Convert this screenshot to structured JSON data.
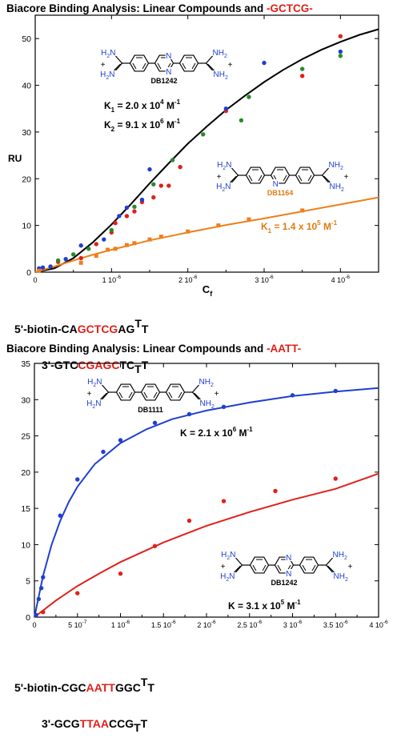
{
  "colors": {
    "red": "#e0201a",
    "blue": "#1f3fd0",
    "green": "#2a8a2a",
    "orange": "#ef7f1a",
    "black": "#000000",
    "mol_blue": "#1f3fd0",
    "mol_orange": "#e07a10"
  },
  "chart_data": [
    {
      "type": "scatter",
      "title_prefix": "Biacore Binding Analysis: Linear Compounds and ",
      "title_highlight": "-GCTCG-",
      "ylabel": "RU",
      "xlabel_main": "C",
      "xlabel_sub": "f",
      "xlim": [
        0,
        4.5e-06
      ],
      "ylim": [
        0,
        55
      ],
      "yticks": [
        0,
        10,
        20,
        30,
        40,
        50
      ],
      "xtick_values": [
        0,
        1e-06,
        2e-06,
        3e-06,
        4e-06
      ],
      "xtick_labels": [
        "0",
        "1 10",
        "2 10",
        "3 10",
        "4 10"
      ],
      "xtick_exp": "-6",
      "series": [
        {
          "color": "red",
          "points": [
            [
              3e-07,
              2.2
            ],
            [
              6e-07,
              3
            ],
            [
              8e-07,
              6
            ],
            [
              1e-06,
              8.5
            ],
            [
              1.05e-06,
              10.5
            ],
            [
              1.2e-06,
              12
            ],
            [
              1.3e-06,
              13
            ],
            [
              1.4e-06,
              15
            ],
            [
              1.55e-06,
              16
            ],
            [
              1.65e-06,
              18.5
            ],
            [
              1.75e-06,
              18.5
            ],
            [
              1.9e-06,
              22.5
            ],
            [
              2.5e-06,
              34.5
            ],
            [
              3.5e-06,
              42
            ],
            [
              4e-06,
              50.5
            ]
          ]
        },
        {
          "color": "blue",
          "points": [
            [
              5e-08,
              0.8
            ],
            [
              1e-07,
              1
            ],
            [
              2e-07,
              1.2
            ],
            [
              4e-07,
              2.8
            ],
            [
              6e-07,
              5.7
            ],
            [
              9e-07,
              7
            ],
            [
              1.1e-06,
              12
            ],
            [
              1.2e-06,
              13.8
            ],
            [
              1.4e-06,
              15.5
            ],
            [
              1.5e-06,
              22
            ],
            [
              2.5e-06,
              35
            ],
            [
              3e-06,
              44.8
            ],
            [
              4e-06,
              47.2
            ]
          ]
        },
        {
          "color": "green",
          "points": [
            [
              3e-07,
              2.5
            ],
            [
              5e-07,
              3.8
            ],
            [
              7e-07,
              5
            ],
            [
              1e-06,
              9
            ],
            [
              1.3e-06,
              14
            ],
            [
              1.55e-06,
              18.8
            ],
            [
              1.8e-06,
              24
            ],
            [
              2.2e-06,
              29.5
            ],
            [
              2.7e-06,
              32.5
            ],
            [
              2.8e-06,
              37.5
            ],
            [
              3.5e-06,
              43.5
            ],
            [
              4e-06,
              46.3
            ]
          ]
        },
        {
          "color": "orange",
          "marker": "square",
          "points": [
            [
              5e-08,
              0.3
            ],
            [
              6e-07,
              2
            ],
            [
              8e-07,
              3.5
            ],
            [
              9.5e-07,
              4.8
            ],
            [
              1.05e-06,
              5
            ],
            [
              1.2e-06,
              5.8
            ],
            [
              1.3e-06,
              6.2
            ],
            [
              1.5e-06,
              7
            ],
            [
              1.65e-06,
              7.6
            ],
            [
              2e-06,
              8.7
            ],
            [
              2.4e-06,
              10
            ],
            [
              2.8e-06,
              11.3
            ],
            [
              3.5e-06,
              13.2
            ]
          ]
        }
      ],
      "fits": [
        {
          "color": "black",
          "points": [
            [
              0,
              0
            ],
            [
              2.5e-07,
              0.8
            ],
            [
              5e-07,
              3
            ],
            [
              7.5e-07,
              6.3
            ],
            [
              1e-06,
              10.2
            ],
            [
              1.25e-06,
              14.5
            ],
            [
              1.5e-06,
              19
            ],
            [
              1.75e-06,
              23.3
            ],
            [
              2e-06,
              27.5
            ],
            [
              2.25e-06,
              31.2
            ],
            [
              2.5e-06,
              34.7
            ],
            [
              2.75e-06,
              37.8
            ],
            [
              3e-06,
              40.7
            ],
            [
              3.25e-06,
              43.3
            ],
            [
              3.5e-06,
              45.6
            ],
            [
              3.75e-06,
              47.6
            ],
            [
              4e-06,
              49.3
            ],
            [
              4.25e-06,
              50.8
            ],
            [
              4.5e-06,
              52
            ]
          ]
        },
        {
          "color": "orange",
          "points": [
            [
              0,
              0
            ],
            [
              2.5e-07,
              1.2
            ],
            [
              5e-07,
              2.5
            ],
            [
              7.5e-07,
              3.7
            ],
            [
              1e-06,
              4.8
            ],
            [
              1.5e-06,
              6.8
            ],
            [
              2e-06,
              8.5
            ],
            [
              2.5e-06,
              10.1
            ],
            [
              3e-06,
              11.5
            ],
            [
              3.5e-06,
              13
            ],
            [
              4e-06,
              14.5
            ],
            [
              4.5e-06,
              16
            ]
          ]
        }
      ],
      "annotations": [
        {
          "mol": "DB1242",
          "k": [
            {
              "pre": "K",
              "sub": "1",
              "mid": " = 2.0 x 10",
              "sup": "4",
              "post": " M",
              "post_sup": "-1"
            },
            {
              "pre": "K",
              "sub": "2",
              "mid": " = 9.1 x 10",
              "sup": "6",
              "post": " M",
              "post_sup": "-1"
            }
          ]
        },
        {
          "mol": "DB1164",
          "k": [
            {
              "pre": "K",
              "sub": "1",
              "mid": " = 1.4 x 10",
              "sup": "5",
              "post": " M",
              "post_sup": "-1"
            }
          ]
        }
      ]
    },
    {
      "type": "scatter",
      "title_prefix": "Biacore Binding Analysis: Linear Compounds and ",
      "title_highlight": "-AATT-",
      "xlim": [
        0,
        4e-06
      ],
      "ylim": [
        0,
        35
      ],
      "yticks": [
        0,
        5,
        10,
        15,
        20,
        25,
        30,
        35
      ],
      "xtick_values": [
        0,
        5e-07,
        1e-06,
        1.5e-06,
        2e-06,
        2.5e-06,
        3e-06,
        3.5e-06,
        4e-06
      ],
      "xtick_labels": [
        "0",
        "5 10",
        "1 10",
        "1.5 10",
        "2 10",
        "2.5 10",
        "3 10",
        "3.5 10",
        "4 10"
      ],
      "xtick_exps": [
        "",
        "-7",
        "-6",
        "-6",
        "-6",
        "-6",
        "-6",
        "-6",
        "-6"
      ],
      "series": [
        {
          "color": "blue",
          "points": [
            [
              2e-08,
              0.3
            ],
            [
              5e-08,
              2.5
            ],
            [
              8e-08,
              4
            ],
            [
              1e-07,
              5.5
            ],
            [
              3e-07,
              14
            ],
            [
              5e-07,
              19
            ],
            [
              8e-07,
              22.8
            ],
            [
              1e-06,
              24.4
            ],
            [
              1.4e-06,
              26.8
            ],
            [
              1.8e-06,
              28
            ],
            [
              2.2e-06,
              29
            ],
            [
              3e-06,
              30.6
            ],
            [
              3.5e-06,
              31.2
            ]
          ]
        },
        {
          "color": "red",
          "points": [
            [
              1e-07,
              0.7
            ],
            [
              5e-07,
              3.3
            ],
            [
              1e-06,
              6
            ],
            [
              1.4e-06,
              9.8
            ],
            [
              1.8e-06,
              13.3
            ],
            [
              2.2e-06,
              16
            ],
            [
              2.8e-06,
              17.4
            ],
            [
              3.5e-06,
              19.1
            ]
          ]
        }
      ],
      "fits": [
        {
          "color": "blue",
          "points": [
            [
              0,
              0
            ],
            [
              1e-07,
              5.7
            ],
            [
              2e-07,
              10
            ],
            [
              3e-07,
              13.3
            ],
            [
              4e-07,
              15.9
            ],
            [
              5e-07,
              18
            ],
            [
              7e-07,
              21.1
            ],
            [
              1e-06,
              24
            ],
            [
              1.3e-06,
              25.9
            ],
            [
              1.6e-06,
              27.3
            ],
            [
              2e-06,
              28.5
            ],
            [
              2.5e-06,
              29.6
            ],
            [
              3e-06,
              30.5
            ],
            [
              3.5e-06,
              31.1
            ],
            [
              4e-06,
              31.6
            ]
          ]
        },
        {
          "color": "red",
          "points": [
            [
              0,
              0
            ],
            [
              2.5e-07,
              2.3
            ],
            [
              5e-07,
              4.3
            ],
            [
              7.5e-07,
              6
            ],
            [
              1e-06,
              7.6
            ],
            [
              1.5e-06,
              10.3
            ],
            [
              2e-06,
              12.6
            ],
            [
              2.5e-06,
              14.5
            ],
            [
              3e-06,
              16.2
            ],
            [
              3.5e-06,
              17.7
            ],
            [
              4e-06,
              19.8
            ]
          ]
        }
      ],
      "annotations": [
        {
          "mol": "DB1111",
          "k": [
            {
              "pre": "K",
              "sub": "",
              "mid": " = 2.1 x 10",
              "sup": "6",
              "post": " M",
              "post_sup": "-1"
            }
          ]
        },
        {
          "mol": "DB1242",
          "k": [
            {
              "pre": "K",
              "sub": "",
              "mid": " = 3.1 x 10",
              "sup": "5",
              "post": " M",
              "post_sup": "-1"
            }
          ]
        }
      ]
    }
  ],
  "sequences": {
    "top": {
      "l1a": "5'-biotin-CA",
      "l1b": "GCTCG",
      "l1c": "AG",
      "l1t1": "T",
      "l1t2": "T",
      "l2a": "3'-GTC",
      "l2b": "CGAGC",
      "l2c": "TC",
      "l2t1": "T",
      "l2t2": "T"
    },
    "bottom": {
      "l1a": "5'-biotin-CGC",
      "l1b": "AATT",
      "l1c": "GGC",
      "l1t1": "T",
      "l1t2": "T",
      "l2a": "3'-GCG",
      "l2b": "TTAA",
      "l2c": "CCG",
      "l2t1": "T",
      "l2t2": "T"
    }
  },
  "molecule": {
    "amidine_NH2": "NH",
    "sub2": "2",
    "amidine_H2N": "H",
    "h2n_sub": "2",
    "h2n_N": "N",
    "plus": "+",
    "N": "N"
  }
}
